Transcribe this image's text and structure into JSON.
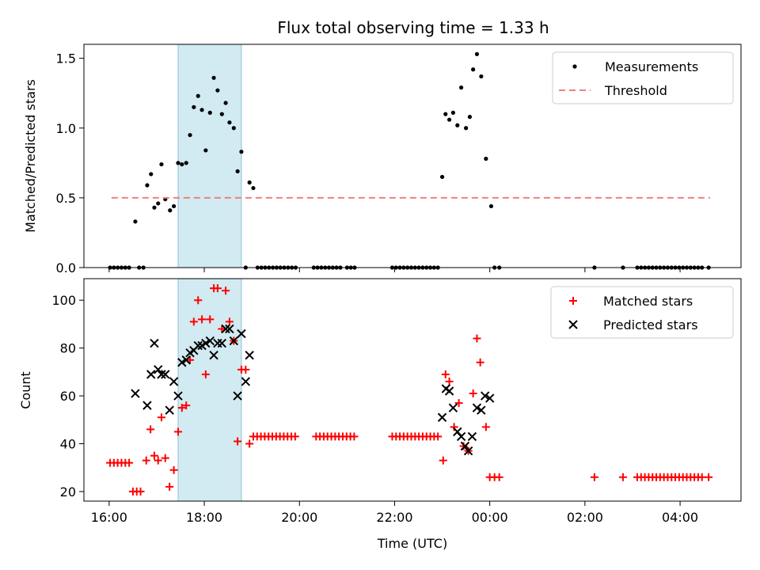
{
  "chart_data": [
    {
      "type": "scatter",
      "title": "Flux total observing time = 1.33 h",
      "ylabel": "Matched/Predicted stars",
      "xlabel": "",
      "ylim": [
        0,
        1.6
      ],
      "xlim_hours": [
        15.47,
        29.28
      ],
      "yticks": [
        0.0,
        0.5,
        1.0,
        1.5
      ],
      "ytick_labels": [
        "0.0",
        "0.5",
        "1.0",
        "1.5"
      ],
      "shaded_span_hours": [
        17.45,
        18.78
      ],
      "shaded_color": "#add8e6",
      "legend_position": "top-right",
      "series": [
        {
          "name": "Measurements",
          "marker": "dot",
          "color": "#000000",
          "points": [
            [
              16.02,
              0
            ],
            [
              16.1,
              0
            ],
            [
              16.18,
              0
            ],
            [
              16.26,
              0
            ],
            [
              16.34,
              0
            ],
            [
              16.42,
              0
            ],
            [
              16.55,
              0.33
            ],
            [
              16.63,
              0
            ],
            [
              16.72,
              0
            ],
            [
              16.8,
              0.59
            ],
            [
              16.88,
              0.67
            ],
            [
              16.95,
              0.43
            ],
            [
              17.03,
              0.46
            ],
            [
              17.1,
              0.74
            ],
            [
              17.18,
              0.49
            ],
            [
              17.28,
              0.41
            ],
            [
              17.36,
              0.44
            ],
            [
              17.45,
              0.75
            ],
            [
              17.53,
              0.74
            ],
            [
              17.62,
              0.75
            ],
            [
              17.7,
              0.95
            ],
            [
              17.78,
              1.15
            ],
            [
              17.87,
              1.23
            ],
            [
              17.95,
              1.13
            ],
            [
              18.03,
              0.84
            ],
            [
              18.12,
              1.11
            ],
            [
              18.2,
              1.36
            ],
            [
              18.28,
              1.27
            ],
            [
              18.37,
              1.1
            ],
            [
              18.45,
              1.18
            ],
            [
              18.53,
              1.04
            ],
            [
              18.62,
              1.0
            ],
            [
              18.7,
              0.69
            ],
            [
              18.78,
              0.83
            ],
            [
              18.87,
              0
            ],
            [
              18.95,
              0.61
            ],
            [
              19.03,
              0.57
            ],
            [
              19.12,
              0
            ],
            [
              19.2,
              0
            ],
            [
              19.28,
              0
            ],
            [
              19.36,
              0
            ],
            [
              19.44,
              0
            ],
            [
              19.52,
              0
            ],
            [
              19.6,
              0
            ],
            [
              19.68,
              0
            ],
            [
              19.76,
              0
            ],
            [
              19.84,
              0
            ],
            [
              19.92,
              0
            ],
            [
              20.3,
              0
            ],
            [
              20.38,
              0
            ],
            [
              20.46,
              0
            ],
            [
              20.54,
              0
            ],
            [
              20.62,
              0
            ],
            [
              20.7,
              0
            ],
            [
              20.78,
              0
            ],
            [
              20.86,
              0
            ],
            [
              21.0,
              0
            ],
            [
              21.08,
              0
            ],
            [
              21.16,
              0
            ],
            [
              21.95,
              0
            ],
            [
              22.03,
              0
            ],
            [
              22.11,
              0
            ],
            [
              22.19,
              0
            ],
            [
              22.27,
              0
            ],
            [
              22.35,
              0
            ],
            [
              22.43,
              0
            ],
            [
              22.51,
              0
            ],
            [
              22.59,
              0
            ],
            [
              22.67,
              0
            ],
            [
              22.75,
              0
            ],
            [
              22.83,
              0
            ],
            [
              22.91,
              0
            ],
            [
              23.0,
              0.65
            ],
            [
              23.07,
              1.1
            ],
            [
              23.15,
              1.06
            ],
            [
              23.23,
              1.11
            ],
            [
              23.32,
              1.02
            ],
            [
              23.4,
              1.29
            ],
            [
              23.5,
              1.0
            ],
            [
              23.58,
              1.08
            ],
            [
              23.65,
              1.42
            ],
            [
              23.73,
              1.53
            ],
            [
              23.82,
              1.37
            ],
            [
              23.92,
              0.78
            ],
            [
              24.03,
              0.44
            ],
            [
              24.1,
              0
            ],
            [
              24.2,
              0
            ],
            [
              26.2,
              0
            ],
            [
              26.8,
              0
            ],
            [
              27.1,
              0
            ],
            [
              27.18,
              0
            ],
            [
              27.26,
              0
            ],
            [
              27.34,
              0
            ],
            [
              27.42,
              0
            ],
            [
              27.5,
              0
            ],
            [
              27.58,
              0
            ],
            [
              27.66,
              0
            ],
            [
              27.74,
              0
            ],
            [
              27.82,
              0
            ],
            [
              27.9,
              0
            ],
            [
              27.98,
              0
            ],
            [
              28.06,
              0
            ],
            [
              28.14,
              0
            ],
            [
              28.22,
              0
            ],
            [
              28.3,
              0
            ],
            [
              28.38,
              0
            ],
            [
              28.46,
              0
            ],
            [
              28.6,
              0
            ]
          ]
        },
        {
          "name": "Threshold",
          "marker": "dashed-line",
          "color": "#f08080",
          "x_range_hours": [
            16.05,
            28.63
          ],
          "value": 0.5
        }
      ]
    },
    {
      "type": "scatter",
      "title": "",
      "ylabel": "Count",
      "xlabel": "Time (UTC)",
      "ylim": [
        16,
        109
      ],
      "xlim_hours": [
        15.47,
        29.28
      ],
      "yticks": [
        20,
        40,
        60,
        80,
        100
      ],
      "ytick_labels": [
        "20",
        "40",
        "60",
        "80",
        "100"
      ],
      "xticks_hours": [
        16,
        18,
        20,
        22,
        24,
        26,
        28
      ],
      "xtick_labels": [
        "16:00",
        "18:00",
        "20:00",
        "22:00",
        "00:00",
        "02:00",
        "04:00"
      ],
      "shaded_span_hours": [
        17.45,
        18.78
      ],
      "shaded_color": "#add8e6",
      "legend_position": "top-right",
      "series": [
        {
          "name": "Matched stars",
          "marker": "plus",
          "color": "#ff0000",
          "points": [
            [
              16.02,
              32
            ],
            [
              16.1,
              32
            ],
            [
              16.18,
              32
            ],
            [
              16.26,
              32
            ],
            [
              16.34,
              32
            ],
            [
              16.42,
              32
            ],
            [
              16.5,
              20
            ],
            [
              16.58,
              20
            ],
            [
              16.66,
              20
            ],
            [
              16.78,
              33
            ],
            [
              16.87,
              46
            ],
            [
              16.95,
              35
            ],
            [
              17.03,
              33
            ],
            [
              17.1,
              51
            ],
            [
              17.18,
              34
            ],
            [
              17.27,
              22
            ],
            [
              17.36,
              29
            ],
            [
              17.45,
              45
            ],
            [
              17.53,
              55
            ],
            [
              17.62,
              56
            ],
            [
              17.7,
              75
            ],
            [
              17.78,
              91
            ],
            [
              17.87,
              100
            ],
            [
              17.95,
              92
            ],
            [
              18.03,
              69
            ],
            [
              18.12,
              92
            ],
            [
              18.2,
              105
            ],
            [
              18.28,
              105
            ],
            [
              18.37,
              88
            ],
            [
              18.45,
              104
            ],
            [
              18.53,
              91
            ],
            [
              18.62,
              83
            ],
            [
              18.7,
              41
            ],
            [
              18.78,
              71
            ],
            [
              18.87,
              71
            ],
            [
              18.95,
              40
            ],
            [
              19.03,
              43
            ],
            [
              19.11,
              43
            ],
            [
              19.19,
              43
            ],
            [
              19.27,
              43
            ],
            [
              19.35,
              43
            ],
            [
              19.43,
              43
            ],
            [
              19.51,
              43
            ],
            [
              19.59,
              43
            ],
            [
              19.67,
              43
            ],
            [
              19.75,
              43
            ],
            [
              19.83,
              43
            ],
            [
              19.91,
              43
            ],
            [
              20.35,
              43
            ],
            [
              20.43,
              43
            ],
            [
              20.51,
              43
            ],
            [
              20.59,
              43
            ],
            [
              20.67,
              43
            ],
            [
              20.75,
              43
            ],
            [
              20.83,
              43
            ],
            [
              20.91,
              43
            ],
            [
              20.99,
              43
            ],
            [
              21.07,
              43
            ],
            [
              21.15,
              43
            ],
            [
              21.95,
              43
            ],
            [
              22.03,
              43
            ],
            [
              22.11,
              43
            ],
            [
              22.19,
              43
            ],
            [
              22.27,
              43
            ],
            [
              22.35,
              43
            ],
            [
              22.43,
              43
            ],
            [
              22.51,
              43
            ],
            [
              22.59,
              43
            ],
            [
              22.67,
              43
            ],
            [
              22.75,
              43
            ],
            [
              22.83,
              43
            ],
            [
              22.91,
              43
            ],
            [
              23.02,
              33
            ],
            [
              23.07,
              69
            ],
            [
              23.15,
              66
            ],
            [
              23.25,
              47
            ],
            [
              23.35,
              57
            ],
            [
              23.45,
              39
            ],
            [
              23.55,
              37
            ],
            [
              23.65,
              61
            ],
            [
              23.73,
              84
            ],
            [
              23.8,
              74
            ],
            [
              23.92,
              47
            ],
            [
              24.0,
              26
            ],
            [
              24.1,
              26
            ],
            [
              24.2,
              26
            ],
            [
              26.2,
              26
            ],
            [
              26.8,
              26
            ],
            [
              27.1,
              26
            ],
            [
              27.18,
              26
            ],
            [
              27.26,
              26
            ],
            [
              27.34,
              26
            ],
            [
              27.42,
              26
            ],
            [
              27.5,
              26
            ],
            [
              27.58,
              26
            ],
            [
              27.66,
              26
            ],
            [
              27.74,
              26
            ],
            [
              27.82,
              26
            ],
            [
              27.9,
              26
            ],
            [
              27.98,
              26
            ],
            [
              28.06,
              26
            ],
            [
              28.14,
              26
            ],
            [
              28.22,
              26
            ],
            [
              28.3,
              26
            ],
            [
              28.38,
              26
            ],
            [
              28.46,
              26
            ],
            [
              28.6,
              26
            ]
          ]
        },
        {
          "name": "Predicted stars",
          "marker": "x",
          "color": "#000000",
          "points": [
            [
              16.55,
              61
            ],
            [
              16.8,
              56
            ],
            [
              16.88,
              69
            ],
            [
              16.95,
              82
            ],
            [
              17.03,
              71
            ],
            [
              17.1,
              69
            ],
            [
              17.18,
              69
            ],
            [
              17.27,
              54
            ],
            [
              17.36,
              66
            ],
            [
              17.45,
              60
            ],
            [
              17.53,
              74
            ],
            [
              17.62,
              75
            ],
            [
              17.7,
              78
            ],
            [
              17.78,
              79
            ],
            [
              17.87,
              81
            ],
            [
              17.95,
              81
            ],
            [
              18.03,
              82
            ],
            [
              18.12,
              83
            ],
            [
              18.2,
              77
            ],
            [
              18.28,
              82
            ],
            [
              18.37,
              82
            ],
            [
              18.45,
              88
            ],
            [
              18.53,
              88
            ],
            [
              18.62,
              83
            ],
            [
              18.7,
              60
            ],
            [
              18.78,
              86
            ],
            [
              18.87,
              66
            ],
            [
              18.95,
              77
            ],
            [
              23.0,
              51
            ],
            [
              23.08,
              63
            ],
            [
              23.15,
              62
            ],
            [
              23.23,
              55
            ],
            [
              23.32,
              45
            ],
            [
              23.4,
              43
            ],
            [
              23.48,
              39
            ],
            [
              23.55,
              37
            ],
            [
              23.63,
              43
            ],
            [
              23.73,
              55
            ],
            [
              23.82,
              54
            ],
            [
              23.9,
              60
            ],
            [
              24.0,
              59
            ]
          ]
        }
      ]
    }
  ]
}
